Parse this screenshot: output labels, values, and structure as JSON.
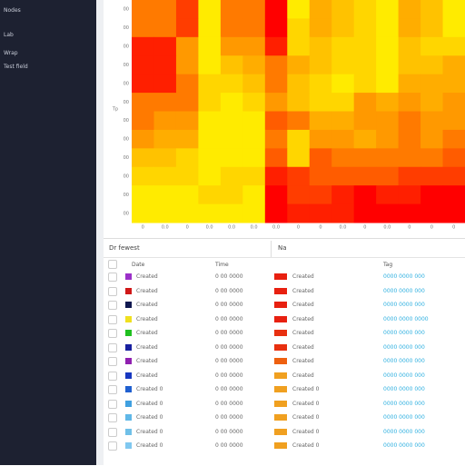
{
  "sidebar": {
    "items": [
      "Nodes",
      "Lab",
      "Wrap",
      "Test field"
    ]
  },
  "heatmap": {
    "type": "heatmap",
    "row_labels": [
      "00",
      "00",
      "00",
      "00",
      "00",
      "00",
      "00",
      "00",
      "00",
      "00",
      "00",
      "00"
    ],
    "col_labels": [
      "0",
      "0.0",
      "0",
      "0.0",
      "0.0",
      "0.0",
      "0.0",
      "0",
      "0",
      "0.0",
      "0",
      "0.0",
      "0",
      "0",
      "0"
    ],
    "axis_label": "Tp",
    "colormap": [
      "#ffff00",
      "#ff9900",
      "#ff0000"
    ],
    "vlim": [
      0,
      1
    ],
    "values": [
      [
        0.6,
        0.6,
        0.8,
        0.1,
        0.6,
        0.6,
        1,
        0.1,
        0.4,
        0.3,
        0.2,
        0.1,
        0.4,
        0.3,
        0.1
      ],
      [
        0.6,
        0.6,
        0.8,
        0.1,
        0.6,
        0.6,
        1,
        0.2,
        0.4,
        0.3,
        0.2,
        0.1,
        0.4,
        0.3,
        0.1
      ],
      [
        0.9,
        0.9,
        0.5,
        0.1,
        0.5,
        0.5,
        0.9,
        0.2,
        0.3,
        0.2,
        0.2,
        0.1,
        0.3,
        0.2,
        0.2
      ],
      [
        0.9,
        0.9,
        0.5,
        0.1,
        0.3,
        0.4,
        0.6,
        0.4,
        0.3,
        0.2,
        0.2,
        0.1,
        0.3,
        0.3,
        0.4
      ],
      [
        0.9,
        0.9,
        0.6,
        0.2,
        0.2,
        0.3,
        0.6,
        0.3,
        0.2,
        0.1,
        0.2,
        0.1,
        0.4,
        0.4,
        0.4
      ],
      [
        0.6,
        0.6,
        0.6,
        0.2,
        0.1,
        0.2,
        0.5,
        0.3,
        0.2,
        0.2,
        0.5,
        0.4,
        0.5,
        0.4,
        0.5
      ],
      [
        0.6,
        0.5,
        0.5,
        0.1,
        0.1,
        0.1,
        0.7,
        0.6,
        0.4,
        0.4,
        0.5,
        0.5,
        0.6,
        0.5,
        0.5
      ],
      [
        0.5,
        0.4,
        0.4,
        0.1,
        0.1,
        0.1,
        0.6,
        0.2,
        0.5,
        0.5,
        0.4,
        0.5,
        0.6,
        0.5,
        0.6
      ],
      [
        0.3,
        0.3,
        0.2,
        0.1,
        0.1,
        0.1,
        0.7,
        0.2,
        0.7,
        0.6,
        0.6,
        0.6,
        0.6,
        0.6,
        0.7
      ],
      [
        0.2,
        0.2,
        0.2,
        0.1,
        0.2,
        0.2,
        0.9,
        0.8,
        0.7,
        0.7,
        0.7,
        0.7,
        0.8,
        0.8,
        0.8
      ],
      [
        0.1,
        0.1,
        0.1,
        0.2,
        0.2,
        0.1,
        1,
        0.8,
        0.8,
        0.9,
        1,
        0.9,
        0.9,
        1,
        1
      ],
      [
        0.1,
        0.1,
        0.1,
        0.1,
        0.1,
        0.1,
        1,
        0.9,
        0.9,
        0.9,
        1,
        1,
        1,
        1,
        1
      ]
    ]
  },
  "table": {
    "title": "Dr fewest",
    "side_title": "Na",
    "columns": [
      "Date",
      "Time",
      "Tag"
    ],
    "rows": [
      {
        "c1": "#9b30c8",
        "name": "Created",
        "time": "0 00 0000",
        "c2": "#e82010",
        "name2": "Created",
        "link": "0000  0000 000"
      },
      {
        "c1": "#d01818",
        "name": "Created",
        "time": "0 00 0000",
        "c2": "#e82010",
        "name2": "Created",
        "link": "0000  0000 000"
      },
      {
        "c1": "#101850",
        "name": "Created",
        "time": "0 00 0000",
        "c2": "#e82010",
        "name2": "Created",
        "link": "0000  0000 000"
      },
      {
        "c1": "#f0e020",
        "name": "Created",
        "time": "0 00 0000",
        "c2": "#e82010",
        "name2": "Created",
        "link": "0000  0000 0000"
      },
      {
        "c1": "#20c020",
        "name": "Created",
        "time": "0 00 0000",
        "c2": "#e83010",
        "name2": "Created",
        "link": "0000  0000 000"
      },
      {
        "c1": "#1820a0",
        "name": "Created",
        "time": "0 00 0000",
        "c2": "#e83010",
        "name2": "Created",
        "link": "0000  0000 000"
      },
      {
        "c1": "#9020b0",
        "name": "Created",
        "time": "0 00 0000",
        "c2": "#ee6010",
        "name2": "Created",
        "link": "0000  0000 000"
      },
      {
        "c1": "#1838c0",
        "name": "Created",
        "time": "0 00 0000",
        "c2": "#f0a020",
        "name2": "Created",
        "link": "0000  0000 000"
      },
      {
        "c1": "#2060d0",
        "name": "Created 0",
        "time": "0 00 0000",
        "c2": "#f0a020",
        "name2": "Created 0",
        "link": "0000  0000 000"
      },
      {
        "c1": "#40a0e0",
        "name": "Created 0",
        "time": "0 00 0000",
        "c2": "#f0a020",
        "name2": "Created 0",
        "link": "0000  0000 000"
      },
      {
        "c1": "#60b8e8",
        "name": "Created 0",
        "time": "0 00 0000",
        "c2": "#f0a020",
        "name2": "Created 0",
        "link": "0000  0000 000"
      },
      {
        "c1": "#70c0e8",
        "name": "Created 0",
        "time": "0 00 0000",
        "c2": "#f0a020",
        "name2": "Created 0",
        "link": "0000  0000 000"
      },
      {
        "c1": "#80c8f0",
        "name": "Created 0",
        "time": "0 00 0000",
        "c2": "#f0a020",
        "name2": "Created 0",
        "link": "0000  0000 000"
      }
    ]
  }
}
